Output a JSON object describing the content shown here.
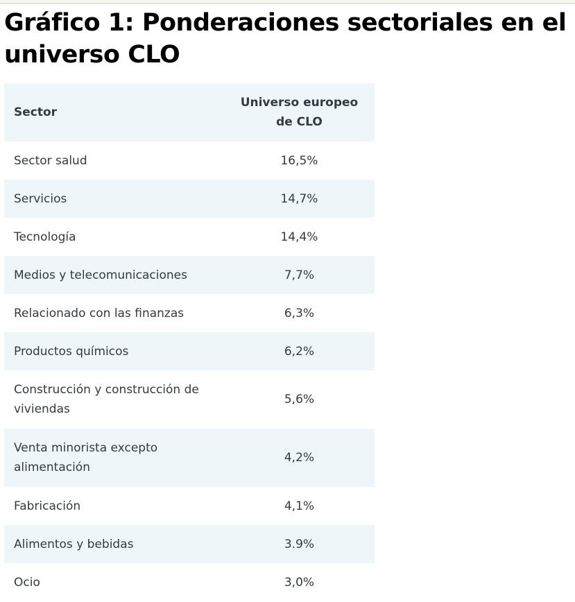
{
  "title": "Gráfico 1: Ponderaciones sectoriales en el universo CLO",
  "table": {
    "headers": [
      "Sector",
      "Universo europeo de CLO"
    ],
    "rows": [
      {
        "sector": "Sector salud",
        "value": "16,5%"
      },
      {
        "sector": "Servicios",
        "value": "14,7%"
      },
      {
        "sector": "Tecnología",
        "value": "14,4%"
      },
      {
        "sector": "Medios y telecomunicaciones",
        "value": "7,7%"
      },
      {
        "sector": "Relacionado con las finanzas",
        "value": "6,3%"
      },
      {
        "sector": "Productos químicos",
        "value": "6,2%"
      },
      {
        "sector": "Construcción y construcción de viviendas",
        "value": "5,6%"
      },
      {
        "sector": "Venta minorista excepto alimentación",
        "value": "4,2%"
      },
      {
        "sector": "Fabricación",
        "value": "4,1%"
      },
      {
        "sector": "Alimentos y bebidas",
        "value": "3.9%"
      },
      {
        "sector": "Ocio",
        "value": "3,0%"
      }
    ]
  }
}
